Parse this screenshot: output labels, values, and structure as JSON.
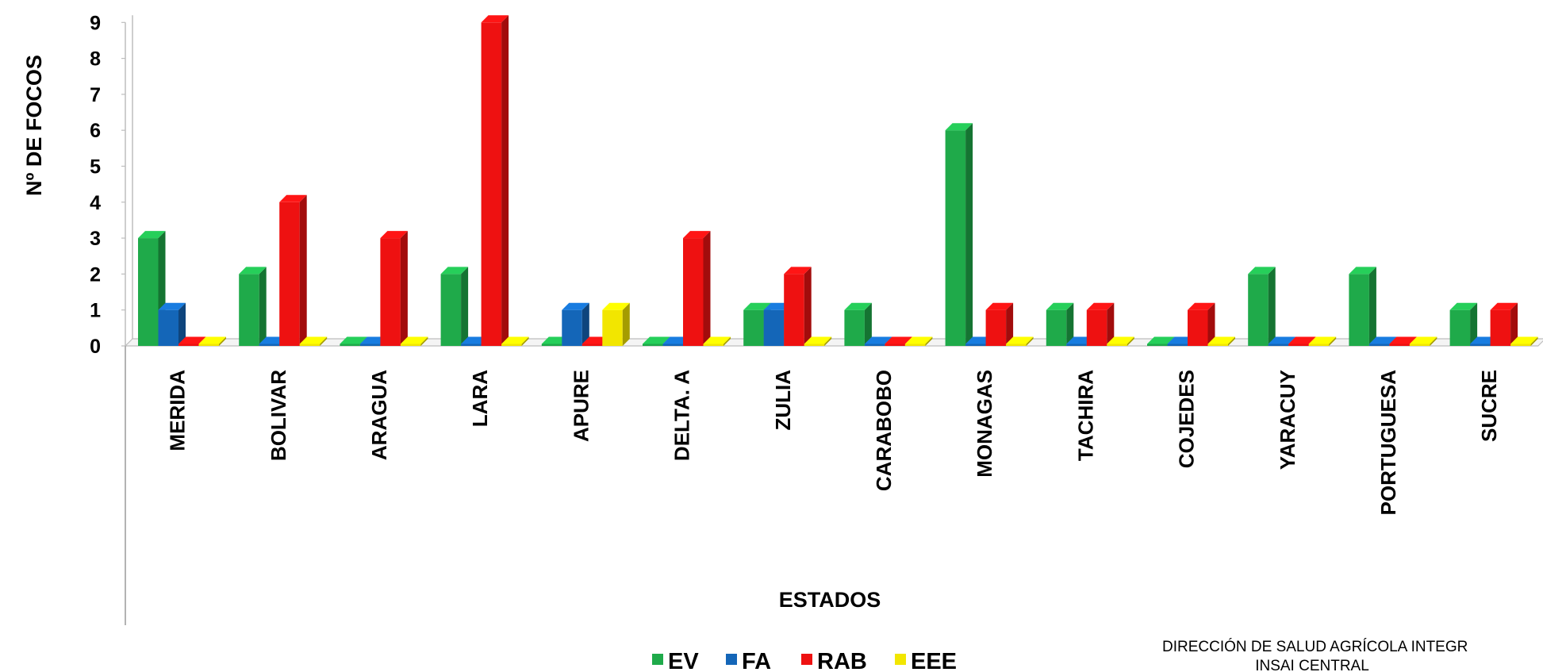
{
  "chart_data": {
    "type": "bar",
    "ylabel": "Nº DE FOCOS",
    "xlabel": "ESTADOS",
    "ylim": [
      0,
      9
    ],
    "yticks": [
      0,
      1,
      2,
      3,
      4,
      5,
      6,
      7,
      8,
      9
    ],
    "categories": [
      "MERIDA",
      "BOLIVAR",
      "ARAGUA",
      "LARA",
      "APURE",
      "DELTA. A",
      "ZULIA",
      "CARABOBO",
      "MONAGAS",
      "TACHIRA",
      "COJEDES",
      "YARACUY",
      "PORTUGUESA",
      "SUCRE"
    ],
    "series": [
      {
        "name": "EV",
        "color": "#1faa4a",
        "values": [
          3,
          2,
          0,
          2,
          0,
          0,
          1,
          1,
          6,
          1,
          0,
          2,
          2,
          1
        ]
      },
      {
        "name": "FA",
        "color": "#1466b8",
        "values": [
          1,
          0,
          0,
          0,
          1,
          0,
          1,
          0,
          0,
          0,
          0,
          0,
          0,
          0
        ]
      },
      {
        "name": "RAB",
        "color": "#ee1111",
        "values": [
          0,
          4,
          3,
          9,
          0,
          3,
          2,
          0,
          1,
          1,
          1,
          0,
          0,
          1
        ]
      },
      {
        "name": "EEE",
        "color": "#f2e600",
        "values": [
          0,
          0,
          0,
          0,
          1,
          0,
          0,
          0,
          0,
          0,
          0,
          0,
          0,
          0
        ]
      }
    ],
    "legend_position": "bottom",
    "grid": false,
    "annotations": [
      "DIRECCIÓN DE SALUD AGRÍCOLA INTEGR",
      "INSAI CENTRAL"
    ]
  }
}
